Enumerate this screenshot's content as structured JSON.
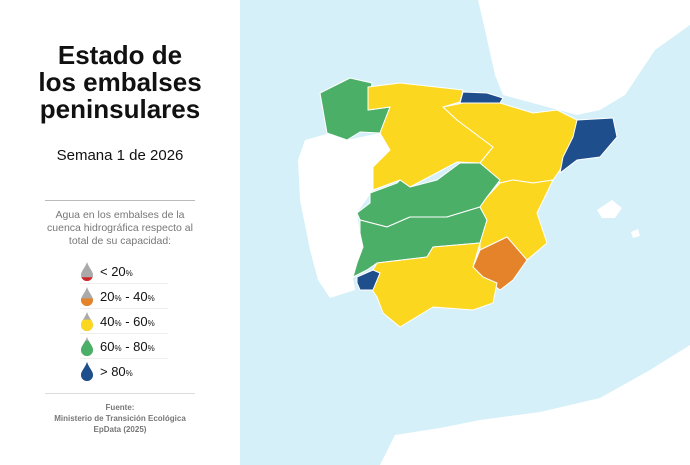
{
  "title": [
    "Estado de",
    "los embalses",
    "peninsulares"
  ],
  "subtitle": "Semana 1 de 2026",
  "legend": {
    "description": "Agua en los embalses de la cuenca hidrográfica respecto al total de su capacidad:",
    "items": [
      {
        "prefix": "< 20",
        "suffix": "",
        "color": "#d0262a",
        "fill": 0.2
      },
      {
        "prefix": "20",
        "suffix": " - 40",
        "color": "#e5832a",
        "fill": 0.4
      },
      {
        "prefix": "40",
        "suffix": " - 60",
        "color": "#fcd720",
        "fill": 0.6
      },
      {
        "prefix": "60",
        "suffix": " - 80",
        "color": "#4caf68",
        "fill": 0.8
      },
      {
        "prefix": "> 80",
        "suffix": "",
        "color": "#1f4e8c",
        "fill": 1.0
      }
    ],
    "percent_sign": "%"
  },
  "source": [
    "Fuente:",
    "Ministerio de Transición Ecológica",
    "EpData (2025)"
  ],
  "map": {
    "sea_color": "#d5f0f8",
    "land_color": "#ffffff",
    "basin_levels": [
      "60-80",
      "40-60",
      ">80",
      "40-60",
      ">80",
      "60-80",
      "60-80",
      "40-60",
      "20-40",
      "40-60",
      ">80"
    ]
  }
}
